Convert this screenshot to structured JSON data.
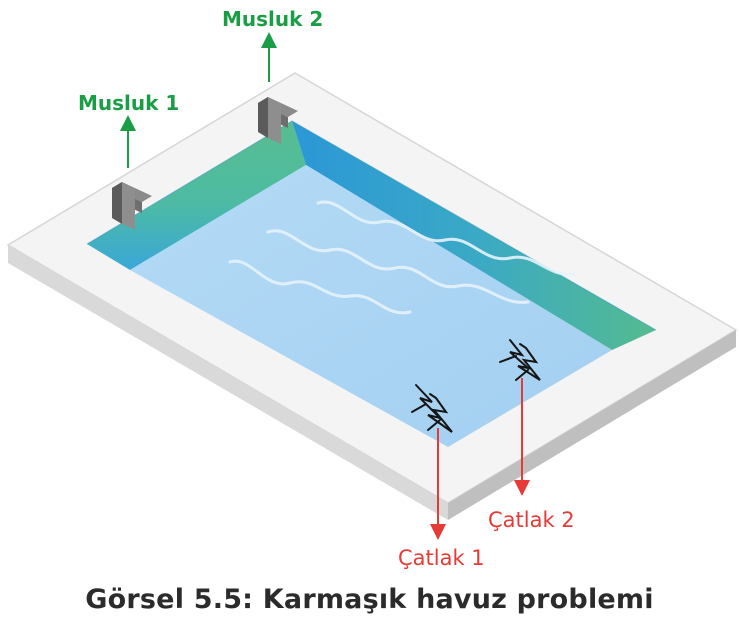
{
  "labels": {
    "tap1": "Musluk 1",
    "tap2": "Musluk 2",
    "crack1": "Çatlak 1",
    "crack2": "Çatlak 2"
  },
  "caption": "Görsel 5.5: Karmaşık havuz problemi",
  "colors": {
    "tap_arrow": "#1a9e45",
    "crack_arrow": "#e53a35",
    "water": "#a9d3f3",
    "wall_teal": "#4fb89c",
    "wall_blue": "#2b9fdc",
    "deck": "#f3f3f3",
    "deck_edge": "#c9c9c9"
  }
}
